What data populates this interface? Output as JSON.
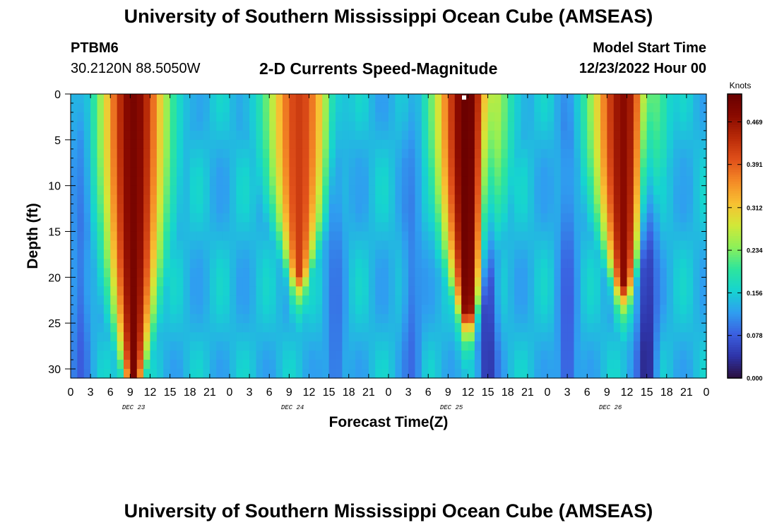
{
  "page": {
    "title": "University of Southern Mississippi Ocean Cube (AMSEAS)",
    "title_repeat": "University of Southern Mississippi Ocean Cube (AMSEAS)",
    "station": "PTBM6",
    "coords": "30.2120N  88.5050W",
    "subtitle": "2-D Currents Speed-Magnitude",
    "start_label": "Model Start Time",
    "start_value": "12/23/2022 Hour 00"
  },
  "chart_data": {
    "type": "heatmap",
    "title": "2-D Currents Speed-Magnitude",
    "xlabel": "Forecast Time(Z)",
    "ylabel": "Depth (ft)",
    "x_range_hours": [
      0,
      96
    ],
    "x_tick_step_hours": 3,
    "x_tick_labels": [
      "0",
      "3",
      "6",
      "9",
      "12",
      "15",
      "18",
      "21",
      "0",
      "3",
      "6",
      "9",
      "12",
      "15",
      "18",
      "21",
      "0",
      "3",
      "6",
      "9",
      "12",
      "15",
      "18",
      "21",
      "0",
      "3",
      "6",
      "9",
      "12",
      "15",
      "18",
      "21",
      "0"
    ],
    "date_labels": [
      "DEC 23",
      "DEC 24",
      "DEC 25",
      "DEC 26"
    ],
    "ylim": [
      0,
      31
    ],
    "y_ticks": [
      0,
      5,
      10,
      15,
      20,
      25,
      30
    ],
    "y_tick_labels": [
      "0",
      "5",
      "10",
      "15",
      "20",
      "25",
      "30"
    ],
    "colorbar": {
      "label": "Knots",
      "min": 0.0,
      "max": 0.52,
      "tick_values": [
        0.469,
        0.391,
        0.312,
        0.234,
        0.156,
        0.078,
        0.0
      ],
      "tick_labels": [
        "0.469",
        "0.391",
        "0.312",
        "0.234",
        "0.156",
        "0.078",
        "0.000"
      ],
      "colors": [
        "#2b0f3e",
        "#2e34a8",
        "#3b5fe0",
        "#2f9ef0",
        "#16d4d0",
        "#2ee59c",
        "#8ef058",
        "#d2e838",
        "#f8c032",
        "#f48a26",
        "#e0501a",
        "#b82a08",
        "#8a0a00",
        "#680000"
      ]
    },
    "peaks": [
      {
        "time_hours": 9.5,
        "peak_knots": 0.5,
        "max_depth_ft": 31
      },
      {
        "time_hours": 34.5,
        "peak_knots": 0.42,
        "max_depth_ft": 20
      },
      {
        "time_hours": 60.0,
        "peak_knots": 0.52,
        "max_depth_ft": 24
      },
      {
        "time_hours": 83.5,
        "peak_knots": 0.48,
        "max_depth_ft": 21
      }
    ],
    "lows": [
      {
        "time_hours": 1.5,
        "knots": 0.07
      },
      {
        "time_hours": 40.0,
        "knots": 0.08
      },
      {
        "time_hours": 51.5,
        "knots": 0.08
      },
      {
        "time_hours": 63.0,
        "knots": 0.02
      },
      {
        "time_hours": 75.0,
        "knots": 0.06
      },
      {
        "time_hours": 87.0,
        "knots": 0.0
      }
    ]
  }
}
